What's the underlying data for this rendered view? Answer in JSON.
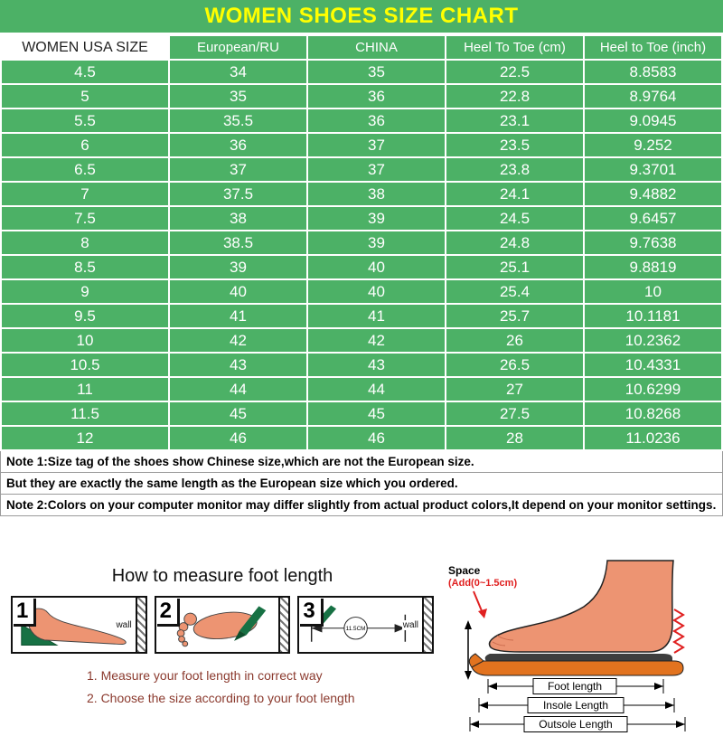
{
  "title": "WOMEN SHOES SIZE CHART",
  "chart_data": {
    "type": "table",
    "title": "WOMEN SHOES SIZE CHART",
    "columns": [
      "WOMEN USA SIZE",
      "European/RU",
      "CHINA",
      "Heel To Toe (cm)",
      "Heel to Toe (inch)"
    ],
    "rows": [
      [
        "4.5",
        "34",
        "35",
        "22.5",
        "8.8583"
      ],
      [
        "5",
        "35",
        "36",
        "22.8",
        "8.9764"
      ],
      [
        "5.5",
        "35.5",
        "36",
        "23.1",
        "9.0945"
      ],
      [
        "6",
        "36",
        "37",
        "23.5",
        "9.252"
      ],
      [
        "6.5",
        "37",
        "37",
        "23.8",
        "9.3701"
      ],
      [
        "7",
        "37.5",
        "38",
        "24.1",
        "9.4882"
      ],
      [
        "7.5",
        "38",
        "39",
        "24.5",
        "9.6457"
      ],
      [
        "8",
        "38.5",
        "39",
        "24.8",
        "9.7638"
      ],
      [
        "8.5",
        "39",
        "40",
        "25.1",
        "9.8819"
      ],
      [
        "9",
        "40",
        "40",
        "25.4",
        "10"
      ],
      [
        "9.5",
        "41",
        "41",
        "25.7",
        "10.1181"
      ],
      [
        "10",
        "42",
        "42",
        "26",
        "10.2362"
      ],
      [
        "10.5",
        "43",
        "43",
        "26.5",
        "10.4331"
      ],
      [
        "11",
        "44",
        "44",
        "27",
        "10.6299"
      ],
      [
        "11.5",
        "45",
        "45",
        "27.5",
        "10.8268"
      ],
      [
        "12",
        "46",
        "46",
        "28",
        "11.0236"
      ]
    ]
  },
  "notes": [
    "Note 1:Size tag of the shoes show Chinese size,which are not the European size.",
    "But they are exactly the same length as the European size which you ordered.",
    "Note 2:Colors on your computer monitor may differ slightly from actual product colors,It depend on your monitor settings."
  ],
  "measure": {
    "heading": "How to measure foot length",
    "steps": [
      {
        "number": "1",
        "wall_label": "wall"
      },
      {
        "number": "2"
      },
      {
        "number": "3",
        "wall_label": "wall",
        "ruler_label": "11.5CM"
      }
    ],
    "space_label": "Space",
    "space_sub": "(Add(0~1.5cm)",
    "labels": {
      "foot_length": "Foot length",
      "insole": "Insole Length",
      "outsole": "Outsole Length"
    },
    "instructions": [
      "1. Measure your foot length in correct way",
      "2. Choose the size according to your foot length"
    ]
  },
  "colors": {
    "green": "#4cb166",
    "title_yellow": "#ffff00",
    "foot_skin": "#ed9472",
    "outsole_orange": "#e2731f",
    "tool_green": "#177144",
    "accent_red": "#e02020",
    "instruction_text": "#8b3a2e"
  }
}
